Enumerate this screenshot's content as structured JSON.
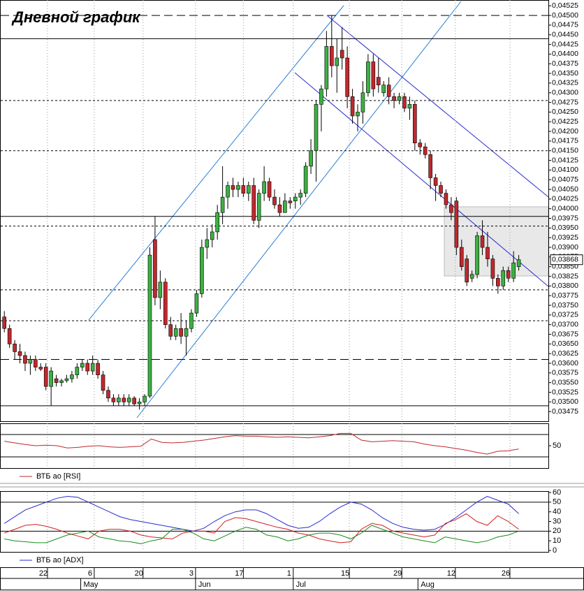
{
  "chart_data": [
    {
      "type": "candlestick",
      "title": "Дневной график",
      "up_color": "#3cb043",
      "down_color": "#c0282d",
      "xlim": [
        -0.7,
        104.7
      ],
      "ylim": [
        0.0345,
        0.0454
      ],
      "yticks": [
        {
          "value": 0.03475,
          "label": "0,03475"
        },
        {
          "value": 0.035,
          "label": "0,03500"
        },
        {
          "value": 0.03525,
          "label": "0,03525"
        },
        {
          "value": 0.0355,
          "label": "0,03550"
        },
        {
          "value": 0.03575,
          "label": "0,03575"
        },
        {
          "value": 0.036,
          "label": "0,03600"
        },
        {
          "value": 0.03625,
          "label": "0,03625"
        },
        {
          "value": 0.0365,
          "label": "0,03650"
        },
        {
          "value": 0.03675,
          "label": "0,03675"
        },
        {
          "value": 0.037,
          "label": "0,03700"
        },
        {
          "value": 0.03725,
          "label": "0,03725"
        },
        {
          "value": 0.0375,
          "label": "0,03750"
        },
        {
          "value": 0.03775,
          "label": "0,03775"
        },
        {
          "value": 0.038,
          "label": "0,03800"
        },
        {
          "value": 0.03825,
          "label": "0,03825"
        },
        {
          "value": 0.0385,
          "label": "0,03850"
        },
        {
          "value": 0.03875,
          "label": "0,03875"
        },
        {
          "value": 0.039,
          "label": "0,03900"
        },
        {
          "value": 0.03925,
          "label": "0,03925"
        },
        {
          "value": 0.0395,
          "label": "0,03950"
        },
        {
          "value": 0.03975,
          "label": "0,03975"
        },
        {
          "value": 0.04,
          "label": "0,04000"
        },
        {
          "value": 0.04025,
          "label": "0,04025"
        },
        {
          "value": 0.0405,
          "label": "0,04050"
        },
        {
          "value": 0.04075,
          "label": "0,04075"
        },
        {
          "value": 0.041,
          "label": "0,04100"
        },
        {
          "value": 0.04125,
          "label": "0,04125"
        },
        {
          "value": 0.0415,
          "label": "0,04150"
        },
        {
          "value": 0.04175,
          "label": "0,04175"
        },
        {
          "value": 0.042,
          "label": "0,04200"
        },
        {
          "value": 0.04225,
          "label": "0,04225"
        },
        {
          "value": 0.0425,
          "label": "0,04250"
        },
        {
          "value": 0.04275,
          "label": "0,04275"
        },
        {
          "value": 0.043,
          "label": "0,04300"
        },
        {
          "value": 0.04325,
          "label": "0,04325"
        },
        {
          "value": 0.0435,
          "label": "0,04350"
        },
        {
          "value": 0.04375,
          "label": "0,04375"
        },
        {
          "value": 0.044,
          "label": "0,04400"
        },
        {
          "value": 0.04425,
          "label": "0,04425"
        },
        {
          "value": 0.0445,
          "label": "0,04450"
        },
        {
          "value": 0.04475,
          "label": "0,04475"
        },
        {
          "value": 0.045,
          "label": "0,04500"
        },
        {
          "value": 0.04525,
          "label": "0,04525"
        }
      ],
      "xticks": [
        {
          "value": 8.3,
          "label": "22"
        },
        {
          "value": 17.3,
          "label": "6"
        },
        {
          "value": 26.7,
          "label": "20"
        },
        {
          "value": 36.8,
          "label": "3"
        },
        {
          "value": 46,
          "label": "17"
        },
        {
          "value": 55.6,
          "label": "1"
        },
        {
          "value": 66.4,
          "label": "15"
        },
        {
          "value": 76.5,
          "label": "29"
        },
        {
          "value": 86.8,
          "label": "12"
        },
        {
          "value": 97.3,
          "label": "26"
        }
      ],
      "month_ticks": [
        {
          "value": 14.7,
          "label": "May"
        },
        {
          "value": 36.8,
          "label": "Jun"
        },
        {
          "value": 55.6,
          "label": "Jul"
        },
        {
          "value": 79.6,
          "label": "Aug"
        }
      ],
      "hlines": [
        {
          "value": 0.045,
          "style": "dashed"
        },
        {
          "value": 0.0444,
          "style": "solid"
        },
        {
          "value": 0.0428,
          "style": "dotted"
        },
        {
          "value": 0.0415,
          "style": "dotted"
        },
        {
          "value": 0.0398,
          "style": "solid"
        },
        {
          "value": 0.03955,
          "style": "dotted"
        },
        {
          "value": 0.0379,
          "style": "dotted"
        },
        {
          "value": 0.0371,
          "style": "dotted"
        },
        {
          "value": 0.0361,
          "style": "dashed"
        },
        {
          "value": 0.0349,
          "style": "solid"
        }
      ],
      "last_price": {
        "value": 0.03868,
        "label": "0,03868"
      },
      "ohlc": [
        [
          0.0372,
          0.03735,
          0.0368,
          0.0369
        ],
        [
          0.0369,
          0.037,
          0.0364,
          0.0365
        ],
        [
          0.0365,
          0.0366,
          0.0361,
          0.0363
        ],
        [
          0.0363,
          0.0365,
          0.036,
          0.0362
        ],
        [
          0.0362,
          0.0363,
          0.0358,
          0.036
        ],
        [
          0.036,
          0.0362,
          0.0357,
          0.0361
        ],
        [
          0.0361,
          0.0362,
          0.0358,
          0.0359
        ],
        [
          0.0359,
          0.036,
          0.0358,
          0.03585
        ],
        [
          0.0359,
          0.036,
          0.0353,
          0.0354
        ],
        [
          0.0354,
          0.0359,
          0.0349,
          0.0358
        ],
        [
          0.0356,
          0.0357,
          0.0354,
          0.0355
        ],
        [
          0.0355,
          0.0356,
          0.0354,
          0.03555
        ],
        [
          0.03555,
          0.0357,
          0.0355,
          0.0356
        ],
        [
          0.0356,
          0.0358,
          0.0355,
          0.0357
        ],
        [
          0.0357,
          0.036,
          0.0356,
          0.0359
        ],
        [
          0.0359,
          0.0361,
          0.0358,
          0.036
        ],
        [
          0.036,
          0.0361,
          0.0357,
          0.0358
        ],
        [
          0.0358,
          0.0362,
          0.0357,
          0.036
        ],
        [
          0.036,
          0.0361,
          0.0356,
          0.0357
        ],
        [
          0.0357,
          0.0358,
          0.0352,
          0.0353
        ],
        [
          0.0353,
          0.0354,
          0.035,
          0.0351
        ],
        [
          0.0351,
          0.0352,
          0.0349,
          0.035
        ],
        [
          0.035,
          0.0352,
          0.0349,
          0.0351
        ],
        [
          0.0351,
          0.0352,
          0.0349,
          0.035
        ],
        [
          0.035,
          0.0352,
          0.0349,
          0.0351
        ],
        [
          0.0351,
          0.03515,
          0.0349,
          0.03495
        ],
        [
          0.03495,
          0.0351,
          0.0348,
          0.035
        ],
        [
          0.035,
          0.0352,
          0.0349,
          0.03515
        ],
        [
          0.03515,
          0.039,
          0.0351,
          0.0388
        ],
        [
          0.0392,
          0.0398,
          0.0375,
          0.0377
        ],
        [
          0.0377,
          0.0384,
          0.0374,
          0.0381
        ],
        [
          0.0381,
          0.0382,
          0.0369,
          0.037
        ],
        [
          0.037,
          0.0372,
          0.0366,
          0.0367
        ],
        [
          0.0367,
          0.037,
          0.0366,
          0.0369
        ],
        [
          0.0369,
          0.0373,
          0.0365,
          0.0367
        ],
        [
          0.0367,
          0.0371,
          0.0362,
          0.0369
        ],
        [
          0.0369,
          0.0374,
          0.0368,
          0.0373
        ],
        [
          0.0373,
          0.0379,
          0.0372,
          0.0378
        ],
        [
          0.0378,
          0.0392,
          0.0377,
          0.039
        ],
        [
          0.039,
          0.0395,
          0.0387,
          0.0392
        ],
        [
          0.0392,
          0.0396,
          0.039,
          0.0394
        ],
        [
          0.0394,
          0.0401,
          0.0392,
          0.0399
        ],
        [
          0.0399,
          0.0411,
          0.0396,
          0.0403
        ],
        [
          0.0403,
          0.0407,
          0.04,
          0.0406
        ],
        [
          0.0406,
          0.0408,
          0.0403,
          0.0405
        ],
        [
          0.0405,
          0.0407,
          0.0403,
          0.0406
        ],
        [
          0.0406,
          0.0408,
          0.0403,
          0.0404
        ],
        [
          0.0404,
          0.0407,
          0.0402,
          0.0406
        ],
        [
          0.0406,
          0.0408,
          0.0396,
          0.0397
        ],
        [
          0.0397,
          0.0405,
          0.0395,
          0.0404
        ],
        [
          0.0404,
          0.0411,
          0.0402,
          0.0407
        ],
        [
          0.0407,
          0.0408,
          0.0402,
          0.0403
        ],
        [
          0.0403,
          0.0405,
          0.04,
          0.0401
        ],
        [
          0.0401,
          0.0403,
          0.0398,
          0.0399
        ],
        [
          0.0399,
          0.0404,
          0.0399,
          0.0402
        ],
        [
          0.0402,
          0.0403,
          0.04,
          0.04015
        ],
        [
          0.0402,
          0.0404,
          0.04,
          0.0403
        ],
        [
          0.0403,
          0.0405,
          0.0401,
          0.0404
        ],
        [
          0.0404,
          0.0412,
          0.0403,
          0.0411
        ],
        [
          0.0411,
          0.0418,
          0.0409,
          0.0415
        ],
        [
          0.0415,
          0.0428,
          0.0407,
          0.0427
        ],
        [
          0.0427,
          0.0432,
          0.042,
          0.0431
        ],
        [
          0.0431,
          0.0446,
          0.0429,
          0.0442
        ],
        [
          0.0442,
          0.045,
          0.0434,
          0.0437
        ],
        [
          0.0437,
          0.0444,
          0.043,
          0.0439
        ],
        [
          0.0441,
          0.0447,
          0.0436,
          0.0439
        ],
        [
          0.0439,
          0.0442,
          0.0426,
          0.0429
        ],
        [
          0.0429,
          0.0431,
          0.0422,
          0.0424
        ],
        [
          0.0424,
          0.0427,
          0.042,
          0.0425
        ],
        [
          0.0425,
          0.0433,
          0.0422,
          0.043
        ],
        [
          0.043,
          0.044,
          0.0429,
          0.0438
        ],
        [
          0.0438,
          0.044,
          0.0429,
          0.0431
        ],
        [
          0.0434,
          0.0439,
          0.043,
          0.0432
        ],
        [
          0.043,
          0.0433,
          0.0429,
          0.0432
        ],
        [
          0.0432,
          0.0434,
          0.0427,
          0.0429
        ],
        [
          0.0429,
          0.043,
          0.0426,
          0.0428
        ],
        [
          0.0428,
          0.043,
          0.0427,
          0.0429
        ],
        [
          0.0429,
          0.043,
          0.0425,
          0.0426
        ],
        [
          0.0426,
          0.0429,
          0.0423,
          0.0427
        ],
        [
          0.0427,
          0.0428,
          0.0415,
          0.0417
        ],
        [
          0.0417,
          0.0418,
          0.0414,
          0.0416
        ],
        [
          0.0416,
          0.0417,
          0.0413,
          0.0414
        ],
        [
          0.0414,
          0.0415,
          0.0405,
          0.0408
        ],
        [
          0.0408,
          0.0409,
          0.0402,
          0.0406
        ],
        [
          0.0406,
          0.0407,
          0.0403,
          0.0404
        ],
        [
          0.0404,
          0.0405,
          0.04,
          0.0401
        ],
        [
          0.0401,
          0.0403,
          0.0397,
          0.0399
        ],
        [
          0.0402,
          0.0403,
          0.0388,
          0.039
        ],
        [
          0.039,
          0.0392,
          0.0384,
          0.0385
        ],
        [
          0.0387,
          0.0388,
          0.038,
          0.0381
        ],
        [
          0.0382,
          0.0384,
          0.0381,
          0.0383
        ],
        [
          0.0383,
          0.0394,
          0.0382,
          0.0393
        ],
        [
          0.0393,
          0.0397,
          0.0388,
          0.039
        ],
        [
          0.039,
          0.0394,
          0.0385,
          0.0387
        ],
        [
          0.0387,
          0.0388,
          0.038,
          0.0382
        ],
        [
          0.0382,
          0.0383,
          0.0378,
          0.038
        ],
        [
          0.038,
          0.0385,
          0.0379,
          0.0384
        ],
        [
          0.0384,
          0.0385,
          0.0381,
          0.0382
        ],
        [
          0.0382,
          0.0389,
          0.0381,
          0.0386
        ],
        [
          0.0385,
          0.0388,
          0.0384,
          0.03868
        ]
      ]
    },
    {
      "type": "line",
      "ylim": [
        10,
        90
      ],
      "yticks": [
        50
      ],
      "levels": [
        30,
        70
      ],
      "series": [
        {
          "name": "ВТБ ао [RSI]",
          "color": "#c0282d",
          "values": [
            58,
            55,
            52,
            50,
            51,
            50,
            46,
            47,
            49,
            50,
            48,
            47,
            48,
            49,
            62,
            56,
            55,
            56,
            58,
            60,
            63,
            66,
            68,
            67,
            67,
            66,
            65,
            66,
            65,
            64,
            66,
            68,
            72,
            72,
            60,
            57,
            58,
            59,
            58,
            57,
            53,
            50,
            48,
            45,
            42,
            38,
            35,
            40,
            41,
            44
          ]
        }
      ]
    },
    {
      "type": "line",
      "ylim": [
        0,
        60
      ],
      "yticks": [
        0,
        10,
        20,
        30,
        40,
        50,
        60
      ],
      "levels": [
        20,
        50
      ],
      "series": [
        {
          "name": "ВТБ ао [ADX]",
          "color": "#2a2ad0",
          "values": [
            28,
            35,
            42,
            46,
            50,
            54,
            56,
            55,
            50,
            45,
            40,
            35,
            32,
            30,
            28,
            26,
            24,
            22,
            20,
            23,
            30,
            36,
            40,
            42,
            42,
            38,
            32,
            26,
            23,
            24,
            30,
            38,
            45,
            50,
            48,
            42,
            34,
            28,
            24,
            22,
            21,
            22,
            27,
            34,
            42,
            50,
            56,
            52,
            48,
            38
          ]
        },
        {
          "color": "#d02020",
          "values": [
            18,
            22,
            26,
            27,
            25,
            22,
            18,
            15,
            12,
            20,
            22,
            22,
            20,
            16,
            14,
            13,
            12,
            18,
            20,
            20,
            18,
            30,
            34,
            33,
            30,
            27,
            24,
            22,
            18,
            16,
            12,
            10,
            8,
            9,
            22,
            28,
            26,
            20,
            18,
            16,
            14,
            16,
            28,
            32,
            38,
            30,
            26,
            36,
            30,
            22
          ]
        },
        {
          "color": "#1a8a1a",
          "values": [
            12,
            10,
            9,
            8,
            8,
            12,
            16,
            18,
            20,
            14,
            12,
            10,
            9,
            7,
            10,
            12,
            22,
            22,
            18,
            12,
            10,
            15,
            20,
            24,
            22,
            16,
            14,
            10,
            12,
            16,
            18,
            18,
            16,
            12,
            18,
            26,
            22,
            18,
            14,
            12,
            10,
            8,
            14,
            12,
            10,
            8,
            10,
            14,
            16,
            20
          ]
        }
      ]
    }
  ]
}
